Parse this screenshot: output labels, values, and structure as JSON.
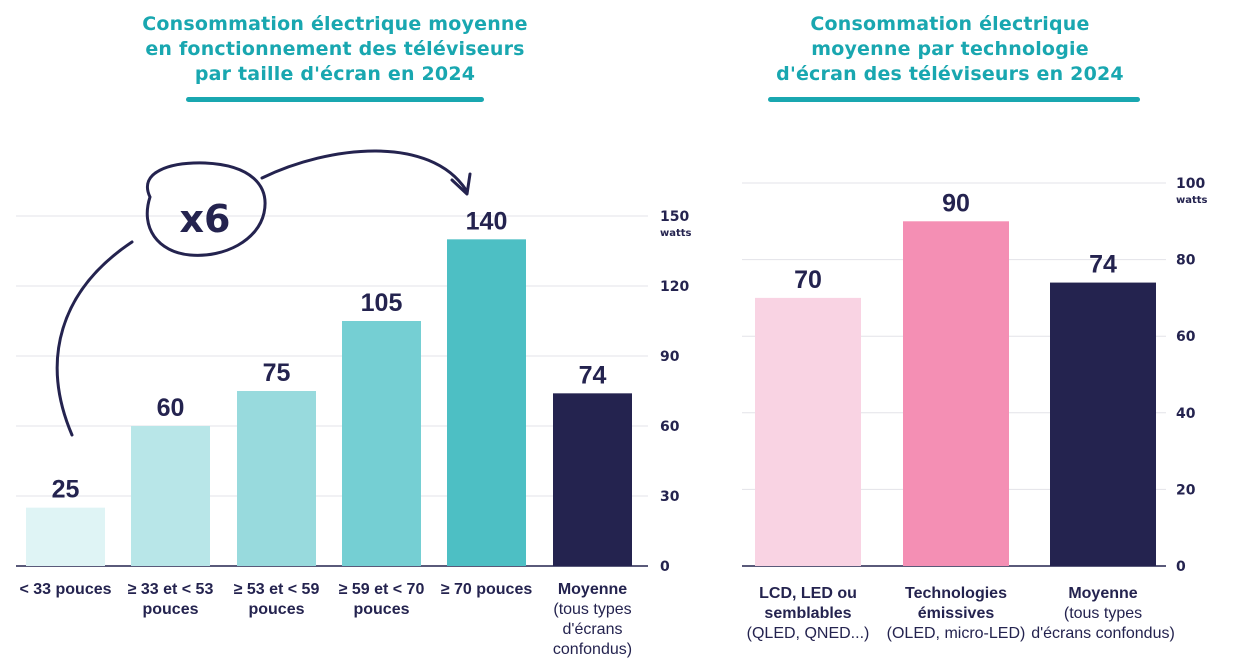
{
  "chart_data": [
    {
      "type": "bar",
      "title": "Consommation électrique moyenne en fonctionnement des téléviseurs par taille d'écran en 2024",
      "title_lines": [
        "Consommation électrique moyenne",
        "en fonctionnement des téléviseurs",
        "par taille d'écran en 2024"
      ],
      "categories": [
        {
          "bold_lines": [
            "< 33 pouces"
          ],
          "normal_lines": []
        },
        {
          "bold_lines": [
            "≥ 33 et < 53",
            "pouces"
          ],
          "normal_lines": []
        },
        {
          "bold_lines": [
            "≥ 53 et < 59",
            "pouces"
          ],
          "normal_lines": []
        },
        {
          "bold_lines": [
            "≥ 59 et < 70",
            "pouces"
          ],
          "normal_lines": []
        },
        {
          "bold_lines": [
            "≥ 70 pouces"
          ],
          "normal_lines": []
        },
        {
          "bold_lines": [
            "Moyenne"
          ],
          "normal_lines": [
            "(tous types",
            "d'écrans confondus)"
          ]
        }
      ],
      "values": [
        25,
        60,
        75,
        105,
        140,
        74
      ],
      "colors": [
        "#dff4f5",
        "#b8e6e8",
        "#98dadd",
        "#75cfd3",
        "#4dbfc4",
        "#24234f"
      ],
      "ylim": [
        0,
        150
      ],
      "yticks": [
        0,
        30,
        60,
        90,
        120,
        150
      ],
      "yunit": "watts",
      "y_axis_position": "right",
      "grid": true,
      "annotation": "x6"
    },
    {
      "type": "bar",
      "title": "Consommation électrique moyenne par technologie d'écran des téléviseurs en 2024",
      "title_lines": [
        "Consommation électrique",
        "moyenne par technologie",
        "d'écran des téléviseurs en 2024"
      ],
      "categories": [
        {
          "bold_lines": [
            "LCD, LED ou",
            "semblables"
          ],
          "normal_lines": [
            "(QLED, QNED...)"
          ]
        },
        {
          "bold_lines": [
            "Technologies",
            "émissives"
          ],
          "normal_lines": [
            "(OLED, micro-LED)"
          ]
        },
        {
          "bold_lines": [
            "Moyenne"
          ],
          "normal_lines": [
            "(tous types",
            "d'écrans confondus)"
          ]
        }
      ],
      "values": [
        70,
        90,
        74
      ],
      "colors": [
        "#f9d3e3",
        "#f48fb4",
        "#24234f"
      ],
      "ylim": [
        0,
        100
      ],
      "yticks": [
        0,
        20,
        40,
        60,
        80,
        100
      ],
      "yunit": "watts",
      "y_axis_position": "right",
      "grid": true
    }
  ]
}
